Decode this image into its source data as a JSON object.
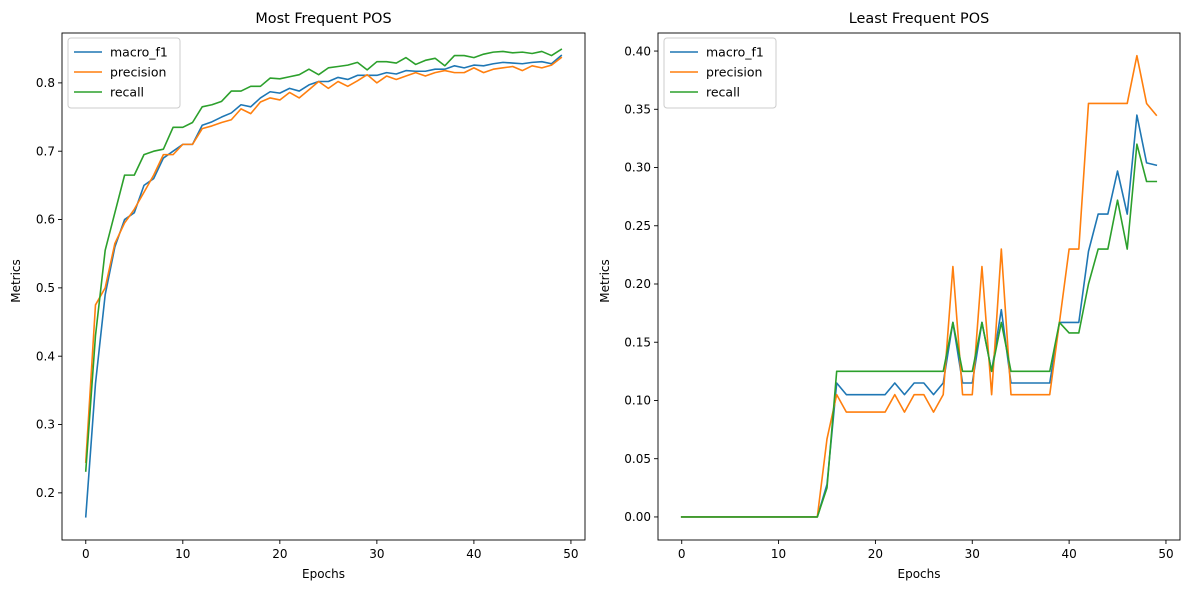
{
  "colors": {
    "macro_f1": "#1f77b4",
    "precision": "#ff7f0e",
    "recall": "#2ca02c"
  },
  "chart_data": [
    {
      "type": "line",
      "title": "Most Frequent POS",
      "xlabel": "Epochs",
      "ylabel": "Metrics",
      "xlim": [
        -2.45,
        51.45
      ],
      "ylim": [
        0.131,
        0.873
      ],
      "xticks": [
        0,
        10,
        20,
        30,
        40,
        50
      ],
      "xtick_labels": [
        "0",
        "10",
        "20",
        "30",
        "40",
        "50"
      ],
      "yticks": [
        0.2,
        0.3,
        0.4,
        0.5,
        0.6,
        0.7,
        0.8
      ],
      "ytick_labels": [
        "0.2",
        "0.3",
        "0.4",
        "0.5",
        "0.6",
        "0.7",
        "0.8"
      ],
      "legend_position": "top-left",
      "series": [
        {
          "name": "macro_f1",
          "color": "#1f77b4",
          "values": [
            0.165,
            0.36,
            0.49,
            0.56,
            0.6,
            0.61,
            0.65,
            0.66,
            0.69,
            0.7,
            0.71,
            0.71,
            0.738,
            0.743,
            0.75,
            0.756,
            0.768,
            0.765,
            0.778,
            0.787,
            0.785,
            0.792,
            0.788,
            0.797,
            0.802,
            0.802,
            0.808,
            0.805,
            0.811,
            0.811,
            0.811,
            0.815,
            0.813,
            0.818,
            0.817,
            0.817,
            0.82,
            0.82,
            0.825,
            0.822,
            0.826,
            0.825,
            0.828,
            0.83,
            0.829,
            0.828,
            0.83,
            0.831,
            0.828,
            0.84
          ]
        },
        {
          "name": "precision",
          "color": "#ff7f0e",
          "values": [
            0.245,
            0.475,
            0.5,
            0.565,
            0.595,
            0.615,
            0.64,
            0.665,
            0.695,
            0.695,
            0.71,
            0.71,
            0.733,
            0.737,
            0.742,
            0.746,
            0.762,
            0.755,
            0.772,
            0.778,
            0.775,
            0.786,
            0.778,
            0.79,
            0.802,
            0.792,
            0.802,
            0.795,
            0.803,
            0.812,
            0.8,
            0.81,
            0.805,
            0.81,
            0.815,
            0.81,
            0.815,
            0.818,
            0.815,
            0.815,
            0.822,
            0.815,
            0.82,
            0.822,
            0.824,
            0.818,
            0.825,
            0.822,
            0.826,
            0.837
          ]
        },
        {
          "name": "recall",
          "color": "#2ca02c",
          "values": [
            0.232,
            0.43,
            0.555,
            0.61,
            0.665,
            0.665,
            0.695,
            0.7,
            0.703,
            0.735,
            0.735,
            0.742,
            0.765,
            0.768,
            0.773,
            0.788,
            0.788,
            0.795,
            0.795,
            0.807,
            0.806,
            0.809,
            0.812,
            0.82,
            0.812,
            0.822,
            0.824,
            0.826,
            0.83,
            0.819,
            0.831,
            0.831,
            0.829,
            0.837,
            0.827,
            0.833,
            0.836,
            0.825,
            0.84,
            0.84,
            0.837,
            0.842,
            0.845,
            0.846,
            0.844,
            0.845,
            0.843,
            0.846,
            0.84,
            0.849
          ]
        }
      ]
    },
    {
      "type": "line",
      "title": "Least Frequent POS",
      "xlabel": "Epochs",
      "ylabel": "Metrics",
      "xlim": [
        -2.45,
        51.45
      ],
      "ylim": [
        -0.0198,
        0.4155
      ],
      "xticks": [
        0,
        10,
        20,
        30,
        40,
        50
      ],
      "xtick_labels": [
        "0",
        "10",
        "20",
        "30",
        "40",
        "50"
      ],
      "yticks": [
        0.0,
        0.05,
        0.1,
        0.15,
        0.2,
        0.25,
        0.3,
        0.35,
        0.4
      ],
      "ytick_labels": [
        "0.00",
        "0.05",
        "0.10",
        "0.15",
        "0.20",
        "0.25",
        "0.30",
        "0.35",
        "0.40"
      ],
      "legend_position": "top-left",
      "series": [
        {
          "name": "macro_f1",
          "color": "#1f77b4",
          "values": [
            0,
            0,
            0,
            0,
            0,
            0,
            0,
            0,
            0,
            0,
            0,
            0,
            0,
            0,
            0,
            0.028,
            0.115,
            0.105,
            0.105,
            0.105,
            0.105,
            0.105,
            0.115,
            0.105,
            0.115,
            0.115,
            0.105,
            0.115,
            0.167,
            0.115,
            0.115,
            0.167,
            0.125,
            0.178,
            0.115,
            0.115,
            0.115,
            0.115,
            0.115,
            0.167,
            0.167,
            0.167,
            0.228,
            0.26,
            0.26,
            0.297,
            0.26,
            0.345,
            0.304,
            0.302
          ]
        },
        {
          "name": "precision",
          "color": "#ff7f0e",
          "values": [
            0,
            0,
            0,
            0,
            0,
            0,
            0,
            0,
            0,
            0,
            0,
            0,
            0,
            0,
            0,
            0.067,
            0.105,
            0.09,
            0.09,
            0.09,
            0.09,
            0.09,
            0.105,
            0.09,
            0.105,
            0.105,
            0.09,
            0.105,
            0.215,
            0.105,
            0.105,
            0.215,
            0.105,
            0.23,
            0.105,
            0.105,
            0.105,
            0.105,
            0.105,
            0.167,
            0.23,
            0.23,
            0.355,
            0.355,
            0.355,
            0.355,
            0.355,
            0.396,
            0.355,
            0.345
          ]
        },
        {
          "name": "recall",
          "color": "#2ca02c",
          "values": [
            0,
            0,
            0,
            0,
            0,
            0,
            0,
            0,
            0,
            0,
            0,
            0,
            0,
            0,
            0,
            0.025,
            0.125,
            0.125,
            0.125,
            0.125,
            0.125,
            0.125,
            0.125,
            0.125,
            0.125,
            0.125,
            0.125,
            0.125,
            0.167,
            0.125,
            0.125,
            0.167,
            0.125,
            0.167,
            0.125,
            0.125,
            0.125,
            0.125,
            0.125,
            0.167,
            0.158,
            0.158,
            0.2,
            0.23,
            0.23,
            0.272,
            0.23,
            0.32,
            0.288,
            0.288
          ]
        }
      ]
    }
  ]
}
